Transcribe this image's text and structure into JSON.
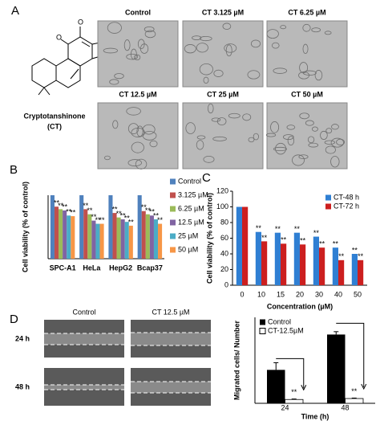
{
  "panel_labels": [
    "A",
    "B",
    "C",
    "D"
  ],
  "panel_a": {
    "compound": "Cryptotanshinone",
    "abbreviation": "(CT)",
    "images": [
      "Control",
      "CT 3.125 µM",
      "CT 6.25 µM",
      "CT 12.5 µM",
      "CT 25 µM",
      "CT 50 µM"
    ]
  },
  "panel_d": {
    "columns": [
      "Control",
      "CT 12.5 µM"
    ],
    "rows": [
      "24 h",
      "48 h"
    ]
  },
  "chart_data": [
    {
      "type": "bar",
      "y_label": "Cell viability (% of control)",
      "categories": [
        "SPC-A1",
        "HeLa",
        "HepG2",
        "Bcap37"
      ],
      "series": [
        {
          "name": "Control",
          "color": "#4f81bd",
          "values": [
            100,
            100,
            100,
            100
          ]
        },
        {
          "name": "3.125 µM",
          "color": "#c0504d",
          "values": [
            82,
            78,
            72,
            75
          ]
        },
        {
          "name": "6.25 µM",
          "color": "#9bbb59",
          "values": [
            78,
            70,
            65,
            70
          ]
        },
        {
          "name": "12.5 µM",
          "color": "#8064a2",
          "values": [
            76,
            60,
            62,
            68
          ]
        },
        {
          "name": "25 µM",
          "color": "#4bacc6",
          "values": [
            68,
            55,
            58,
            62
          ]
        },
        {
          "name": "50 µM",
          "color": "#f79646",
          "values": [
            67,
            55,
            52,
            55
          ]
        }
      ],
      "ylim": [
        0,
        100
      ],
      "significance_label": "**"
    },
    {
      "type": "bar",
      "y_label": "Cell viability (% of control)",
      "x_label": "Concentration (µM)",
      "categories": [
        "0",
        "10",
        "15",
        "20",
        "30",
        "40",
        "50"
      ],
      "series": [
        {
          "name": "CT-48 h",
          "color": "#2f7fd3",
          "values": [
            100,
            68,
            67,
            67,
            62,
            48,
            40
          ]
        },
        {
          "name": "CT-72 h",
          "color": "#cc1f1f",
          "values": [
            100,
            56,
            53,
            52,
            48,
            32,
            32
          ]
        }
      ],
      "ylim": [
        0,
        120
      ],
      "yticks": [
        0,
        20,
        40,
        60,
        80,
        100,
        120
      ],
      "significance_label": "**"
    },
    {
      "type": "bar",
      "y_label": "Migrated cells/ Number",
      "x_label": "Time (h)",
      "categories": [
        "24",
        "48"
      ],
      "series": [
        {
          "name": "Control",
          "color": "#000000",
          "values": [
            350,
            720
          ],
          "errors": [
            75,
            30
          ]
        },
        {
          "name": "CT-12.5µM",
          "color": "#ffffff",
          "values": [
            40,
            50
          ],
          "errors": [
            5,
            5
          ]
        }
      ],
      "ylim": [
        0,
        900
      ],
      "significance_label": "**"
    }
  ]
}
